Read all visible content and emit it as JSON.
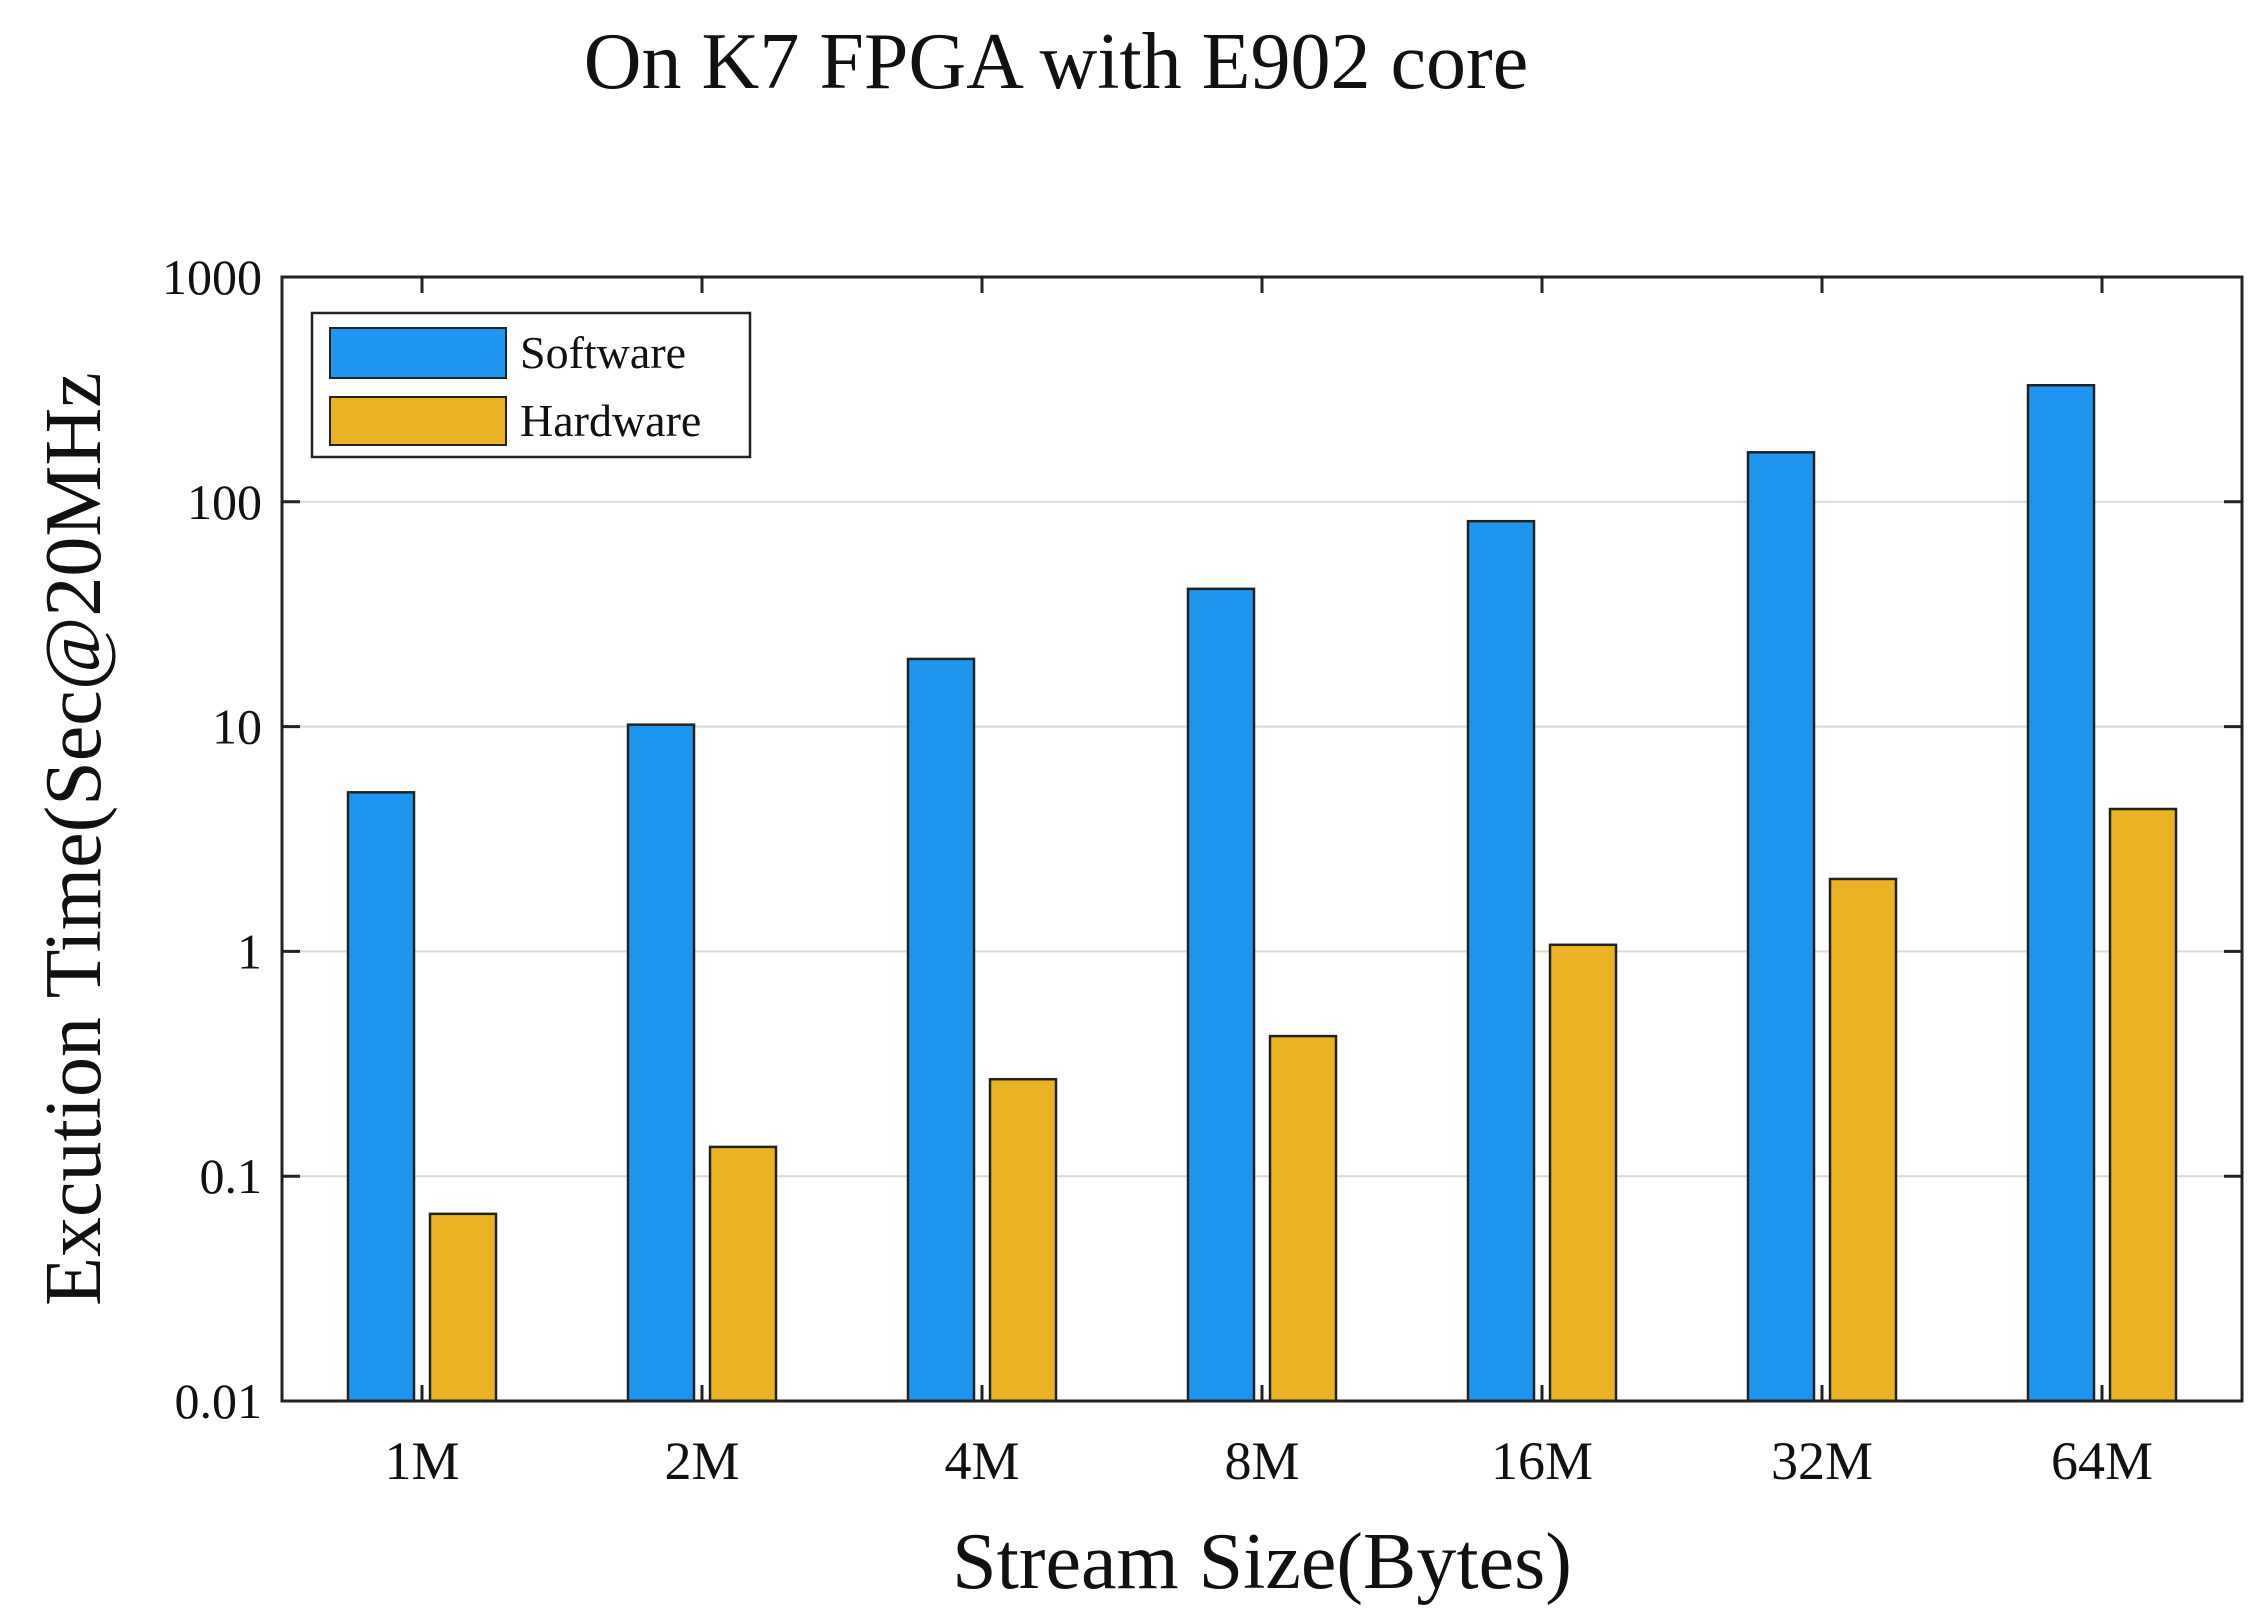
{
  "chart_data": {
    "type": "bar",
    "title": "On K7 FPGA with E902 core",
    "xlabel": "Stream Size(Bytes)",
    "ylabel": "Excution Time(Sec@20MHz",
    "yscale": "log",
    "ylim": [
      0.01,
      1000
    ],
    "yticks": [
      {
        "value": 0.01,
        "label": "0.01"
      },
      {
        "value": 0.1,
        "label": "0.1"
      },
      {
        "value": 1,
        "label": "1"
      },
      {
        "value": 10,
        "label": "10"
      },
      {
        "value": 100,
        "label": "100"
      },
      {
        "value": 1000,
        "label": "1000"
      }
    ],
    "grid": true,
    "legend_position": "top-left",
    "categories": [
      "1M",
      "2M",
      "4M",
      "8M",
      "16M",
      "32M",
      "64M"
    ],
    "series": [
      {
        "name": "Software",
        "color": "#1E96F0",
        "values": [
          5.1,
          10.2,
          20.0,
          41.0,
          82.0,
          166.0,
          330.0
        ]
      },
      {
        "name": "Hardware",
        "color": "#EBB226",
        "values": [
          0.068,
          0.135,
          0.27,
          0.42,
          1.07,
          2.1,
          4.3
        ]
      }
    ]
  }
}
